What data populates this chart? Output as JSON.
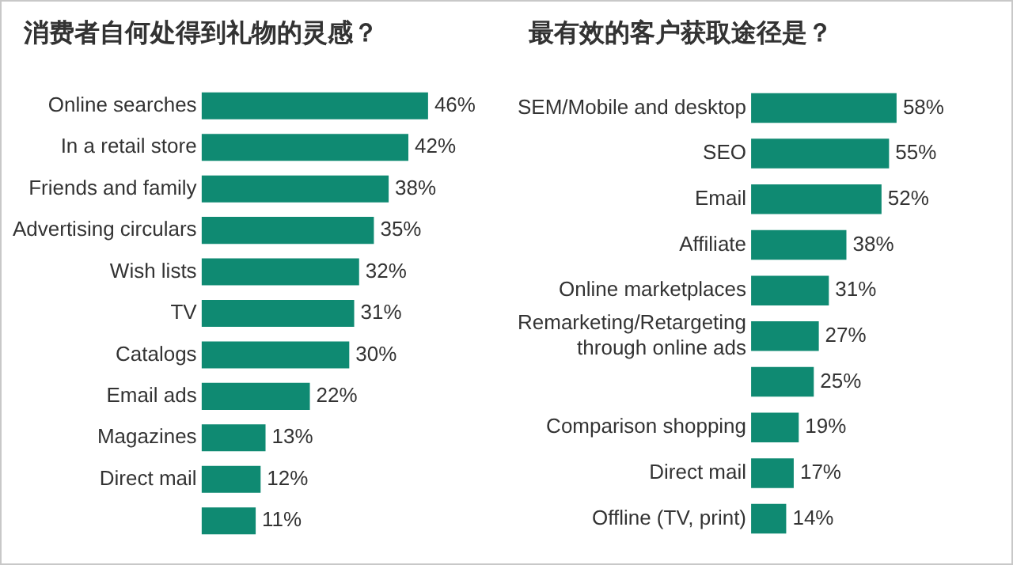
{
  "chart_data": [
    {
      "type": "bar",
      "orientation": "horizontal",
      "title": "消费者自何处得到礼物的灵感？",
      "categories": [
        "Online searches",
        "In a retail store",
        "Friends and family",
        "Advertising circulars",
        "Wish lists",
        "TV",
        "Catalogs",
        "Email ads",
        "Magazines",
        "Direct mail",
        null
      ],
      "series": [
        {
          "color": "#0f8a72",
          "values": [
            46,
            42,
            38,
            35,
            32,
            31,
            30,
            22,
            13,
            12,
            11
          ],
          "value_labels": [
            "46%",
            "42%",
            "38%",
            "35%",
            "32%",
            "31%",
            "30%",
            "22%",
            "13%",
            "12%",
            "11%"
          ]
        }
      ],
      "grid": false,
      "legend": false,
      "tick_labels": "y"
    },
    {
      "type": "bar",
      "orientation": "horizontal",
      "title": "最有效的客户获取途径是？",
      "categories": [
        "SEM/Mobile and desktop",
        "SEO",
        "Email",
        "Affiliate",
        "Online marketplaces",
        "Remarketing/Retargeting\nthrough online ads",
        null,
        "Comparison shopping",
        "Direct mail",
        "Offline (TV, print)"
      ],
      "series": [
        {
          "color": "#0f8a72",
          "values": [
            58,
            55,
            52,
            38,
            31,
            27,
            25,
            19,
            17,
            14
          ],
          "value_labels": [
            "58%",
            "55%",
            "52%",
            "38%",
            "31%",
            "27%",
            "25%",
            "19%",
            "17%",
            "14%"
          ]
        }
      ],
      "grid": false,
      "legend": false,
      "tick_labels": "y"
    }
  ]
}
